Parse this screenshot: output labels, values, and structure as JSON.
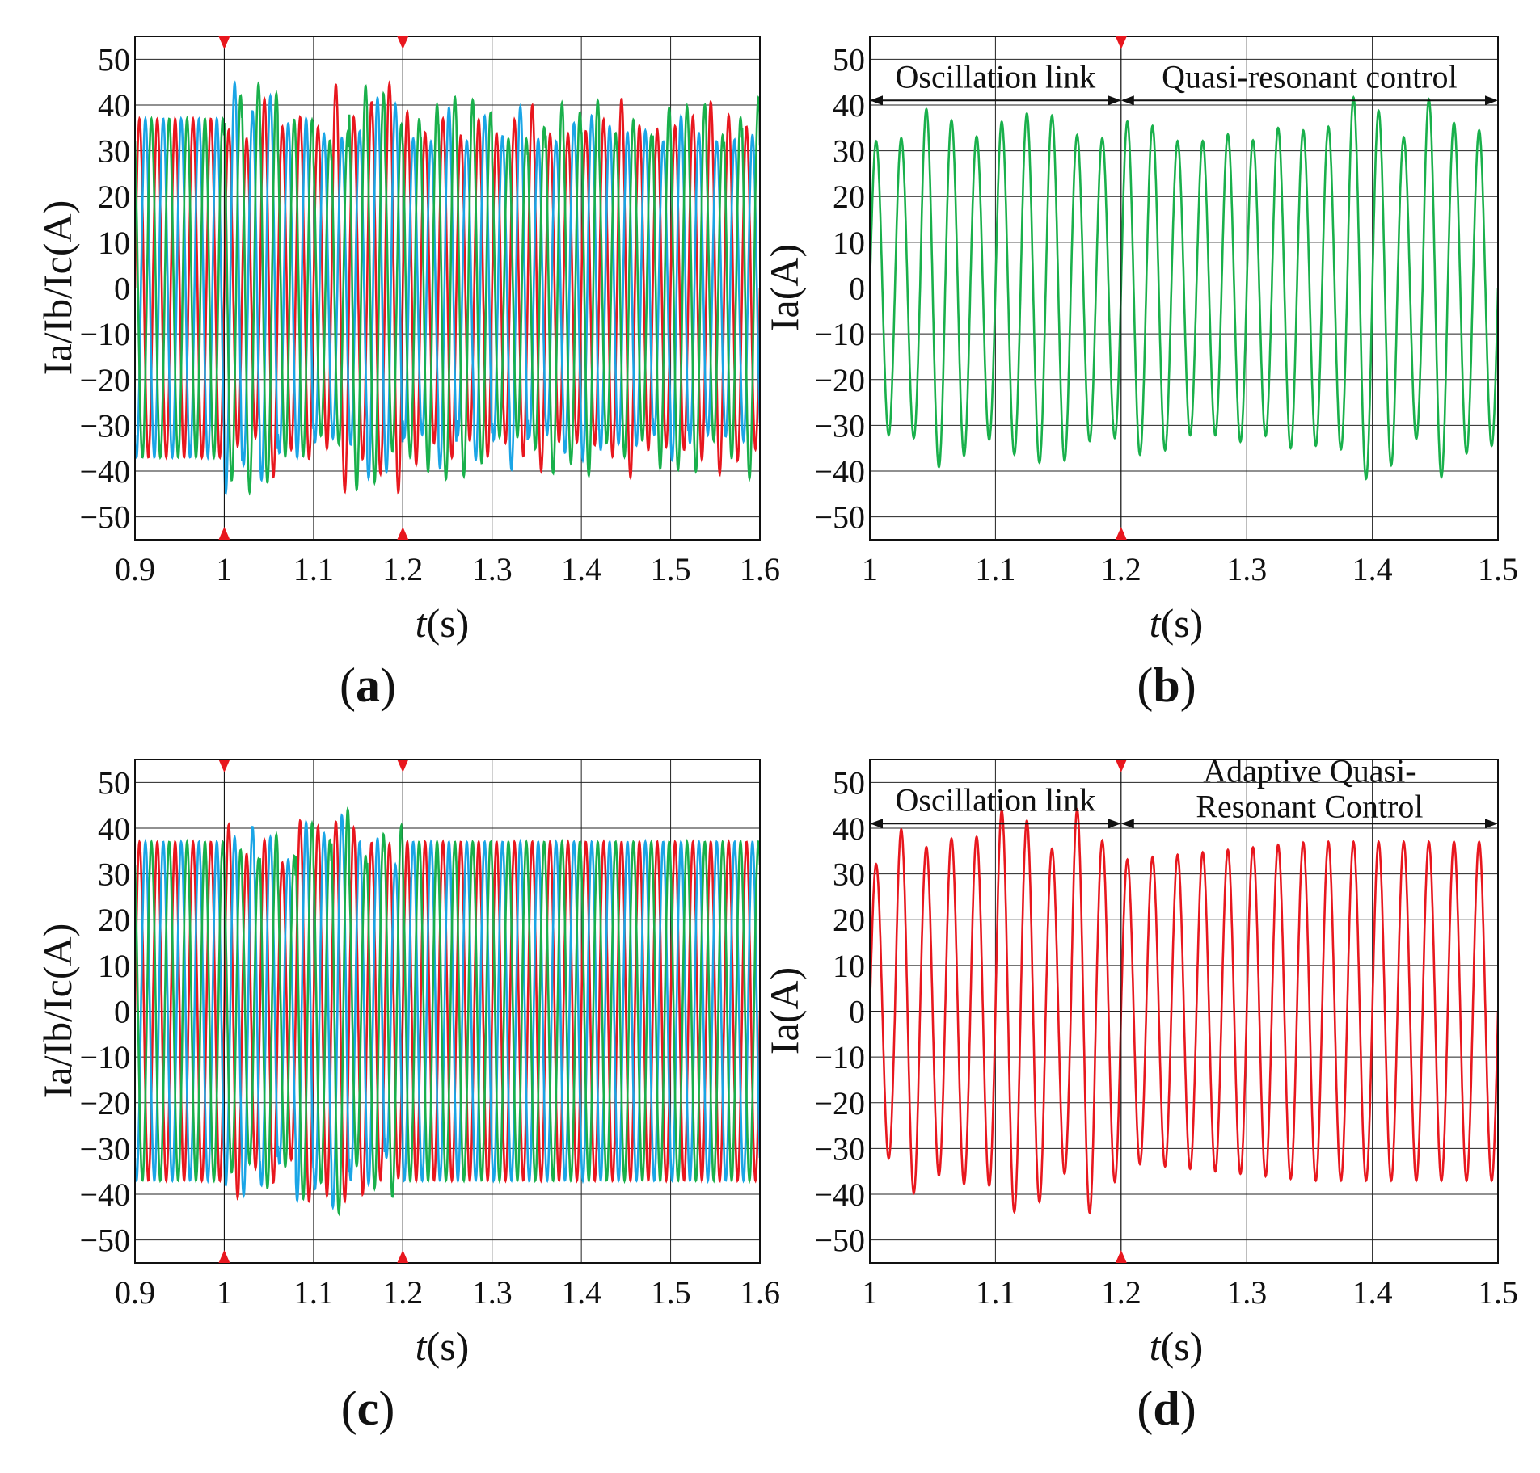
{
  "colors": {
    "phase_a": "#E8171E",
    "phase_b": "#1AA5E6",
    "phase_c": "#19B04B",
    "marker": "#E8171E"
  },
  "chart_data": [
    {
      "id": "a",
      "caption_letter": "a",
      "type": "line",
      "xlabel_var": "t",
      "xlabel_unit": "(s)",
      "ylabel": "Ia/Ib/Ic(A)",
      "xlim": [
        0.9,
        1.6
      ],
      "ylim": [
        -55,
        55
      ],
      "xticks": [
        0.9,
        1.0,
        1.1,
        1.2,
        1.3,
        1.4,
        1.5,
        1.6
      ],
      "xtick_labels": [
        "0.9",
        "1",
        "1.1",
        "1.2",
        "1.3",
        "1.4",
        "1.5",
        "1.6"
      ],
      "yticks": [
        -50,
        -40,
        -30,
        -20,
        -10,
        0,
        10,
        20,
        30,
        40,
        50
      ],
      "ytick_labels": [
        "−50",
        "−40",
        "−30",
        "−20",
        "−10",
        "0",
        "10",
        "20",
        "30",
        "40",
        "50"
      ],
      "frequency_hz": 50,
      "steady_amplitude": 37,
      "oscillation_window": [
        1.0,
        1.2
      ],
      "post_window_amplitude_range": [
        32,
        42
      ],
      "markers": [
        1.0,
        1.2
      ],
      "series": [
        {
          "name": "Ia",
          "color_key": "phase_a",
          "phase_deg": 0
        },
        {
          "name": "Ib",
          "color_key": "phase_b",
          "phase_deg": -120
        },
        {
          "name": "Ic",
          "color_key": "phase_c",
          "phase_deg": 120
        }
      ],
      "annotations": []
    },
    {
      "id": "b",
      "caption_letter": "b",
      "type": "line",
      "xlabel_var": "t",
      "xlabel_unit": "(s)",
      "ylabel": "Ia(A)",
      "xlim": [
        1.0,
        1.5
      ],
      "ylim": [
        -55,
        55
      ],
      "xticks": [
        1.0,
        1.1,
        1.2,
        1.3,
        1.4,
        1.5
      ],
      "xtick_labels": [
        "1",
        "1.1",
        "1.2",
        "1.3",
        "1.4",
        "1.5"
      ],
      "yticks": [
        -50,
        -40,
        -30,
        -20,
        -10,
        0,
        10,
        20,
        30,
        40,
        50
      ],
      "ytick_labels": [
        "−50",
        "−40",
        "−30",
        "−20",
        "−10",
        "0",
        "10",
        "20",
        "30",
        "40",
        "50"
      ],
      "frequency_hz": 50,
      "amplitude_range": [
        32,
        42
      ],
      "markers": [
        1.2
      ],
      "series": [
        {
          "name": "Ia",
          "color_key": "phase_c",
          "phase_deg": 0
        }
      ],
      "annotations": [
        {
          "lines": [
            "Oscillation link"
          ],
          "x_from": 1.0,
          "x_to": 1.2
        },
        {
          "lines": [
            "Quasi-resonant control"
          ],
          "x_from": 1.2,
          "x_to": 1.5
        }
      ]
    },
    {
      "id": "c",
      "caption_letter": "c",
      "type": "line",
      "xlabel_var": "t",
      "xlabel_unit": "(s)",
      "ylabel": "Ia/Ib/Ic(A)",
      "xlim": [
        0.9,
        1.6
      ],
      "ylim": [
        -55,
        55
      ],
      "xticks": [
        0.9,
        1.0,
        1.1,
        1.2,
        1.3,
        1.4,
        1.5,
        1.6
      ],
      "xtick_labels": [
        "0.9",
        "1",
        "1.1",
        "1.2",
        "1.3",
        "1.4",
        "1.5",
        "1.6"
      ],
      "yticks": [
        -50,
        -40,
        -30,
        -20,
        -10,
        0,
        10,
        20,
        30,
        40,
        50
      ],
      "ytick_labels": [
        "−50",
        "−40",
        "−30",
        "−20",
        "−10",
        "0",
        "10",
        "20",
        "30",
        "40",
        "50"
      ],
      "frequency_hz": 50,
      "steady_amplitude": 37,
      "oscillation_window": [
        1.0,
        1.2
      ],
      "post_window_amplitude": 37,
      "markers": [
        1.0,
        1.2
      ],
      "series": [
        {
          "name": "Ia",
          "color_key": "phase_a",
          "phase_deg": 0
        },
        {
          "name": "Ib",
          "color_key": "phase_b",
          "phase_deg": -120
        },
        {
          "name": "Ic",
          "color_key": "phase_c",
          "phase_deg": 120
        }
      ],
      "annotations": []
    },
    {
      "id": "d",
      "caption_letter": "d",
      "type": "line",
      "xlabel_var": "t",
      "xlabel_unit": "(s)",
      "ylabel": "Ia(A)",
      "xlim": [
        1.0,
        1.5
      ],
      "ylim": [
        -55,
        55
      ],
      "xticks": [
        1.0,
        1.1,
        1.2,
        1.3,
        1.4,
        1.5
      ],
      "xtick_labels": [
        "1",
        "1.1",
        "1.2",
        "1.3",
        "1.4",
        "1.5"
      ],
      "yticks": [
        -50,
        -40,
        -30,
        -20,
        -10,
        0,
        10,
        20,
        30,
        40,
        50
      ],
      "ytick_labels": [
        "−50",
        "−40",
        "−30",
        "−20",
        "−10",
        "0",
        "10",
        "20",
        "30",
        "40",
        "50"
      ],
      "frequency_hz": 50,
      "amplitude_range_before": [
        32,
        45
      ],
      "amplitude_after": [
        33,
        37
      ],
      "markers": [
        1.2
      ],
      "series": [
        {
          "name": "Ia",
          "color_key": "phase_a",
          "phase_deg": 0
        }
      ],
      "annotations": [
        {
          "lines": [
            "Oscillation link"
          ],
          "x_from": 1.0,
          "x_to": 1.2
        },
        {
          "lines": [
            "Adaptive Quasi-",
            "Resonant Control"
          ],
          "x_from": 1.2,
          "x_to": 1.5
        }
      ]
    }
  ]
}
